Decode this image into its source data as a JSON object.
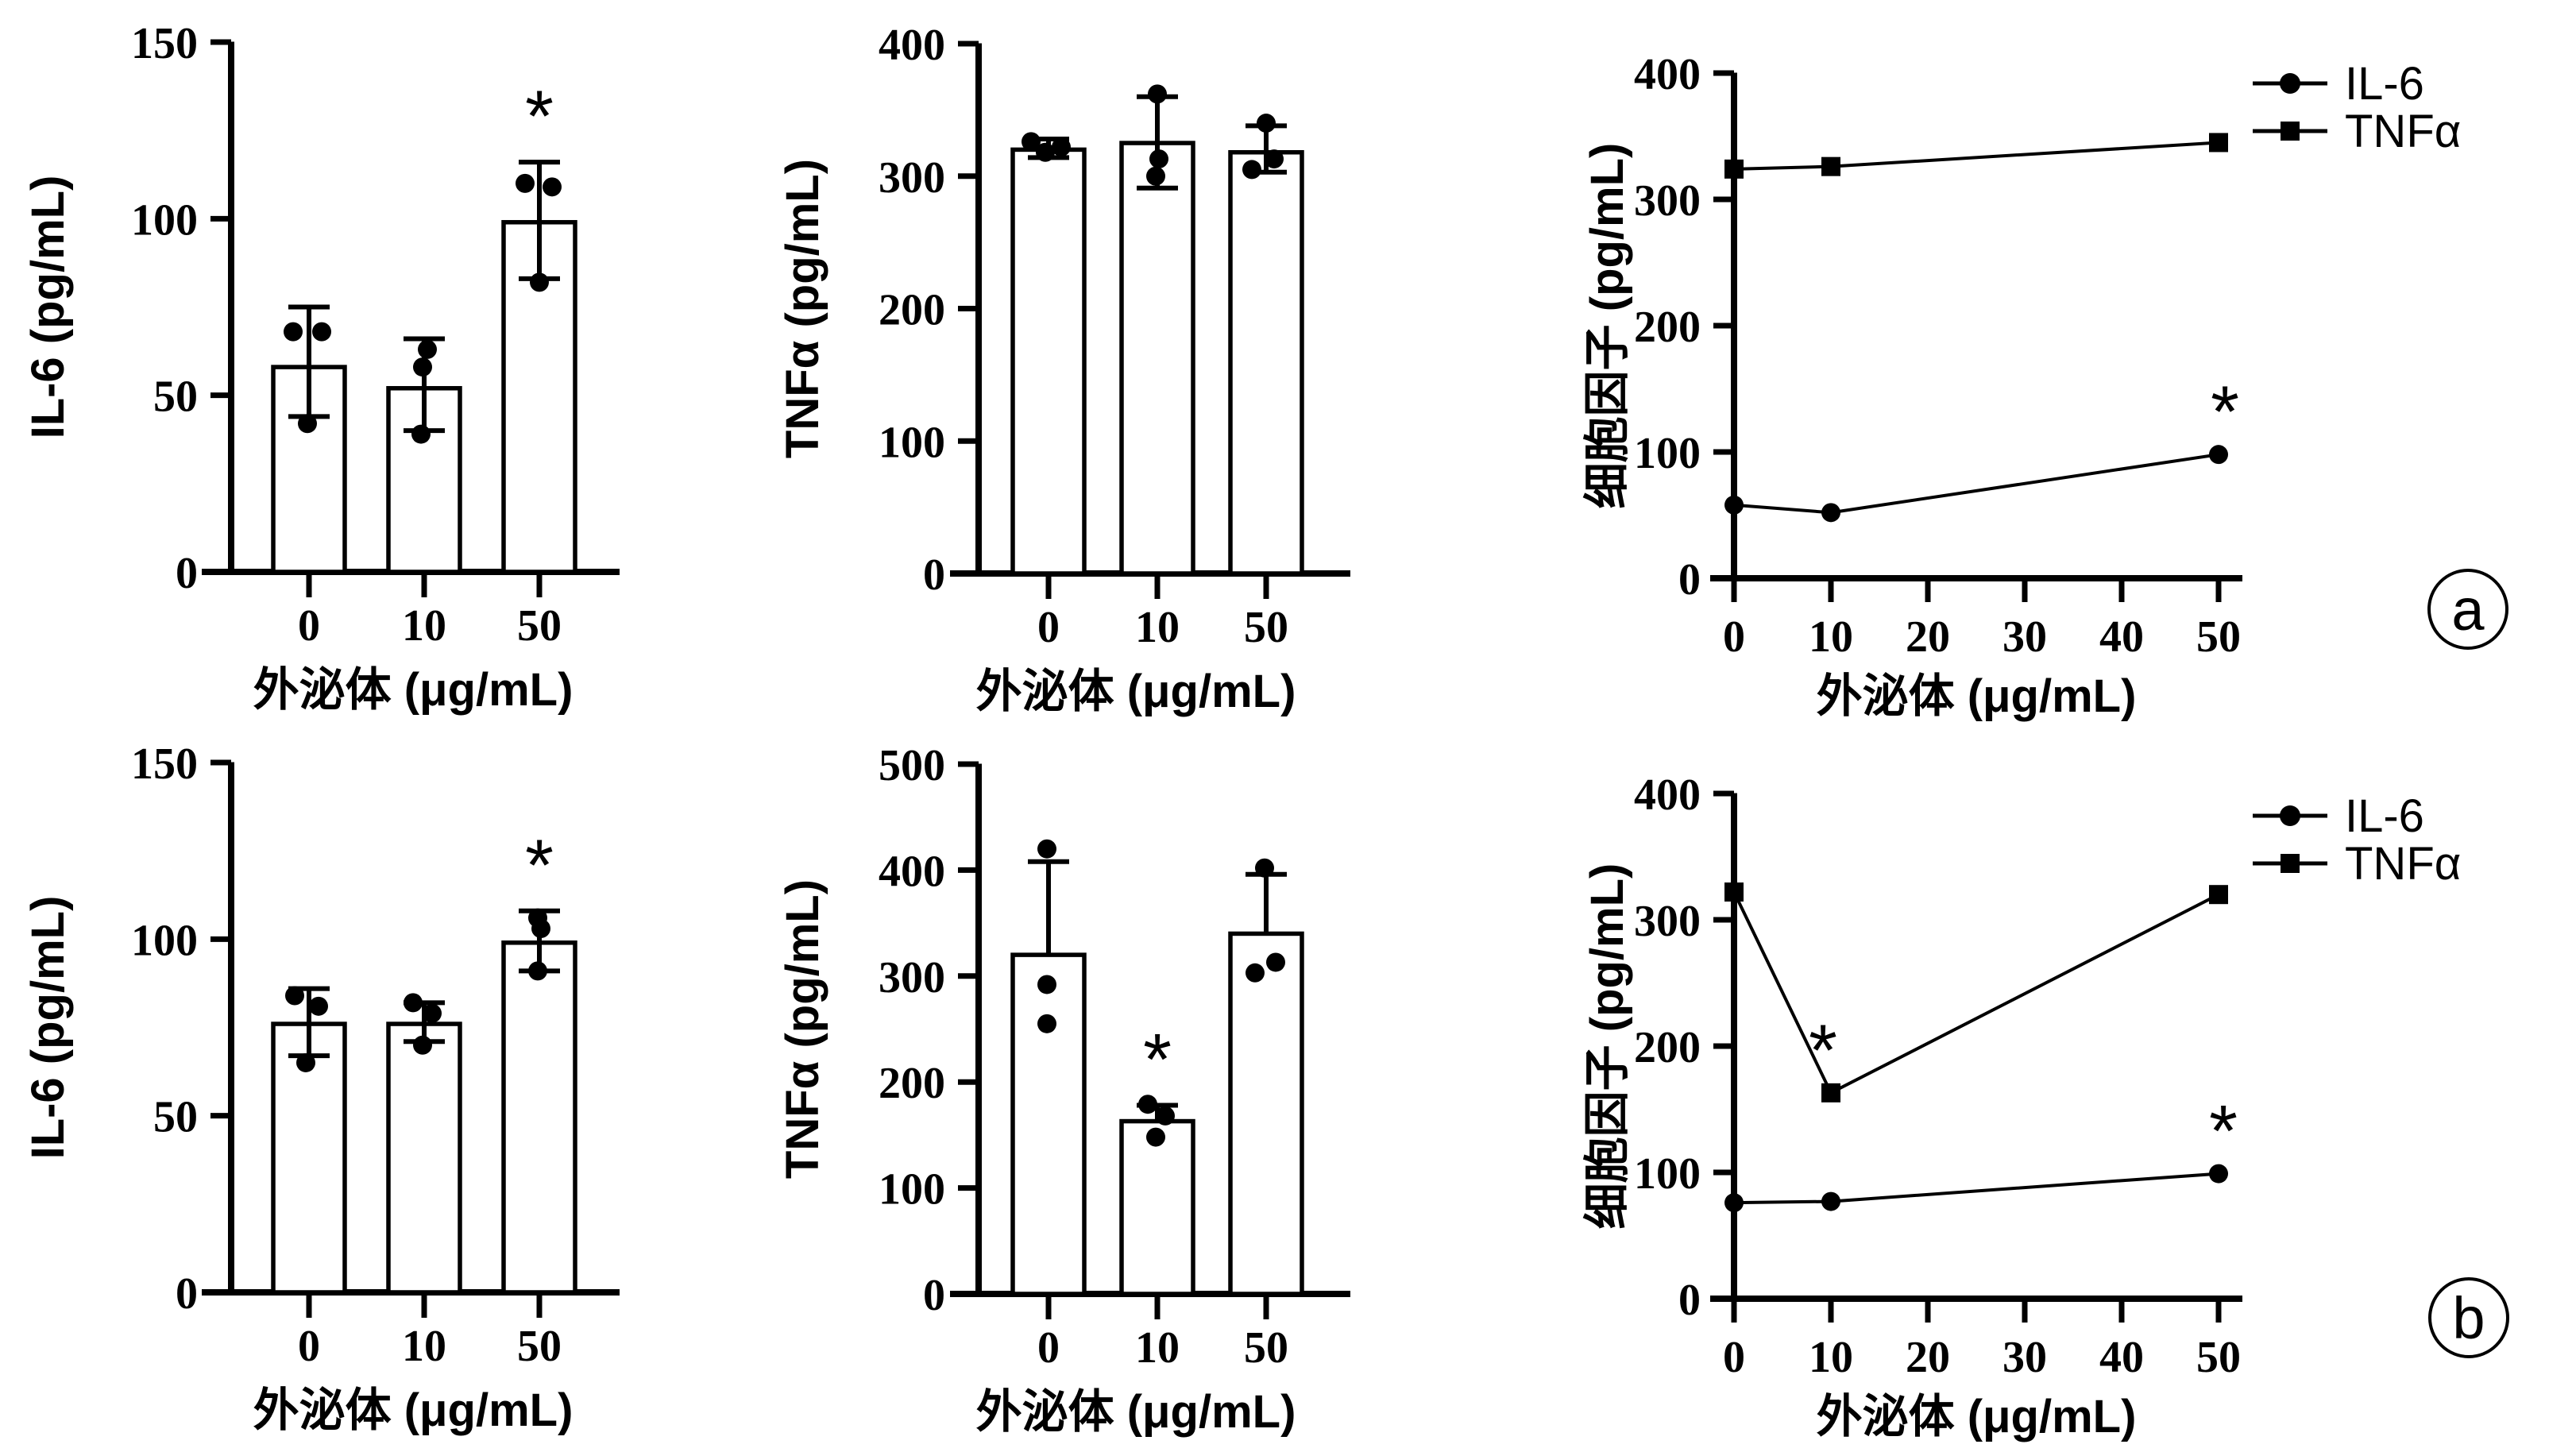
{
  "figure": {
    "background": "#ffffff",
    "ink": "#000000",
    "panel_labels": [
      {
        "label": "a"
      },
      {
        "label": "b"
      }
    ]
  },
  "chart_data": [
    {
      "id": "a1",
      "panel": "a",
      "type": "bar",
      "title": "",
      "ylabel": "IL-6 (pg/mL)",
      "xlabel": "外泌体 (μg/mL)",
      "ylim": [
        0,
        150
      ],
      "yticks": [
        0,
        50,
        100,
        150
      ],
      "categories": [
        "0",
        "10",
        "50"
      ],
      "bars": [
        {
          "mean": 58,
          "err_low": 44,
          "err_high": 75,
          "sig": null,
          "points": [
            {
              "v": 68,
              "dx": -20
            },
            {
              "v": 68,
              "dx": 16
            },
            {
              "v": 42,
              "dx": -2
            }
          ]
        },
        {
          "mean": 52,
          "err_low": 40,
          "err_high": 66,
          "sig": null,
          "points": [
            {
              "v": 63,
              "dx": 4
            },
            {
              "v": 58,
              "dx": -2
            },
            {
              "v": 39,
              "dx": -4
            }
          ]
        },
        {
          "mean": 99,
          "err_low": 83,
          "err_high": 116,
          "sig": "*",
          "points": [
            {
              "v": 110,
              "dx": -18
            },
            {
              "v": 109,
              "dx": 16
            },
            {
              "v": 82,
              "dx": 0
            }
          ]
        }
      ]
    },
    {
      "id": "a2",
      "panel": "a",
      "type": "bar",
      "title": "",
      "ylabel": "TNFα (pg/mL)",
      "xlabel": "外泌体 (μg/mL)",
      "ylim": [
        0,
        400
      ],
      "yticks": [
        0,
        100,
        200,
        300,
        400
      ],
      "categories": [
        "0",
        "10",
        "50"
      ],
      "bars": [
        {
          "mean": 320,
          "err_low": 314,
          "err_high": 328,
          "sig": null,
          "points": [
            {
              "v": 326,
              "dx": -22
            },
            {
              "v": 318,
              "dx": -4
            },
            {
              "v": 322,
              "dx": 16
            }
          ]
        },
        {
          "mean": 325,
          "err_low": 291,
          "err_high": 360,
          "sig": null,
          "points": [
            {
              "v": 362,
              "dx": 0
            },
            {
              "v": 313,
              "dx": 2
            },
            {
              "v": 300,
              "dx": -2
            }
          ]
        },
        {
          "mean": 318,
          "err_low": 303,
          "err_high": 338,
          "sig": null,
          "points": [
            {
              "v": 340,
              "dx": 0
            },
            {
              "v": 313,
              "dx": 10
            },
            {
              "v": 305,
              "dx": -18
            }
          ]
        }
      ]
    },
    {
      "id": "a3",
      "panel": "a",
      "type": "line",
      "title": "",
      "ylabel": "细胞因子 (pg/mL)",
      "xlabel": "外泌体 (μg/mL)",
      "ylim": [
        0,
        400
      ],
      "yticks": [
        0,
        100,
        200,
        300,
        400
      ],
      "xlim": [
        0,
        50
      ],
      "xticks": [
        0,
        10,
        20,
        30,
        40,
        50
      ],
      "legend_position": "top-right",
      "series": [
        {
          "name": "IL-6",
          "marker": "circle",
          "x": [
            0,
            10,
            50
          ],
          "y": [
            58,
            52,
            98
          ],
          "sig": [
            {
              "xi": 2,
              "dx": 8
            }
          ]
        },
        {
          "name": "TNFα",
          "marker": "square",
          "x": [
            0,
            10,
            50
          ],
          "y": [
            324,
            326,
            345
          ],
          "sig": []
        }
      ]
    },
    {
      "id": "b1",
      "panel": "b",
      "type": "bar",
      "title": "",
      "ylabel": "IL-6 (pg/mL)",
      "xlabel": "外泌体 (μg/mL)",
      "ylim": [
        0,
        150
      ],
      "yticks": [
        0,
        50,
        100,
        150
      ],
      "categories": [
        "0",
        "10",
        "50"
      ],
      "bars": [
        {
          "mean": 76,
          "err_low": 67,
          "err_high": 86,
          "sig": null,
          "points": [
            {
              "v": 84,
              "dx": -18
            },
            {
              "v": 81,
              "dx": 12
            },
            {
              "v": 65,
              "dx": -4
            }
          ]
        },
        {
          "mean": 76,
          "err_low": 71,
          "err_high": 82,
          "sig": null,
          "points": [
            {
              "v": 82,
              "dx": -14
            },
            {
              "v": 79,
              "dx": 10
            },
            {
              "v": 70,
              "dx": -2
            }
          ]
        },
        {
          "mean": 99,
          "err_low": 91,
          "err_high": 108,
          "sig": "*",
          "points": [
            {
              "v": 106,
              "dx": -2
            },
            {
              "v": 103,
              "dx": 2
            },
            {
              "v": 91,
              "dx": -2
            }
          ]
        }
      ]
    },
    {
      "id": "b2",
      "panel": "b",
      "type": "bar",
      "title": "",
      "ylabel": "TNFα (pg/mL)",
      "xlabel": "外泌体 (μg/mL)",
      "ylim": [
        0,
        500
      ],
      "yticks": [
        0,
        100,
        200,
        300,
        400,
        500
      ],
      "categories": [
        "0",
        "10",
        "50"
      ],
      "bars": [
        {
          "mean": 320,
          "err_low": null,
          "err_high": 408,
          "sig": null,
          "points": [
            {
              "v": 420,
              "dx": -2
            },
            {
              "v": 292,
              "dx": -2
            },
            {
              "v": 255,
              "dx": -2
            }
          ]
        },
        {
          "mean": 163,
          "err_low": null,
          "err_high": 178,
          "sig": "*",
          "points": [
            {
              "v": 179,
              "dx": -12
            },
            {
              "v": 168,
              "dx": 10
            },
            {
              "v": 148,
              "dx": -2
            }
          ]
        },
        {
          "mean": 340,
          "err_low": null,
          "err_high": 396,
          "sig": null,
          "points": [
            {
              "v": 402,
              "dx": -2
            },
            {
              "v": 313,
              "dx": 12
            },
            {
              "v": 303,
              "dx": -14
            }
          ]
        }
      ]
    },
    {
      "id": "b3",
      "panel": "b",
      "type": "line",
      "title": "",
      "ylabel": "细胞因子 (pg/mL)",
      "xlabel": "外泌体 (μg/mL)",
      "ylim": [
        0,
        400
      ],
      "yticks": [
        0,
        100,
        200,
        300,
        400
      ],
      "xlim": [
        0,
        50
      ],
      "xticks": [
        0,
        10,
        20,
        30,
        40,
        50
      ],
      "legend_position": "top-right",
      "series": [
        {
          "name": "IL-6",
          "marker": "circle",
          "x": [
            0,
            10,
            50
          ],
          "y": [
            76,
            77,
            99
          ],
          "sig": [
            {
              "xi": 2,
              "dx": 6
            }
          ]
        },
        {
          "name": "TNFα",
          "marker": "square",
          "x": [
            0,
            10,
            50
          ],
          "y": [
            322,
            163,
            320
          ],
          "sig": [
            {
              "xi": 1,
              "dx": -10
            }
          ]
        }
      ]
    }
  ]
}
